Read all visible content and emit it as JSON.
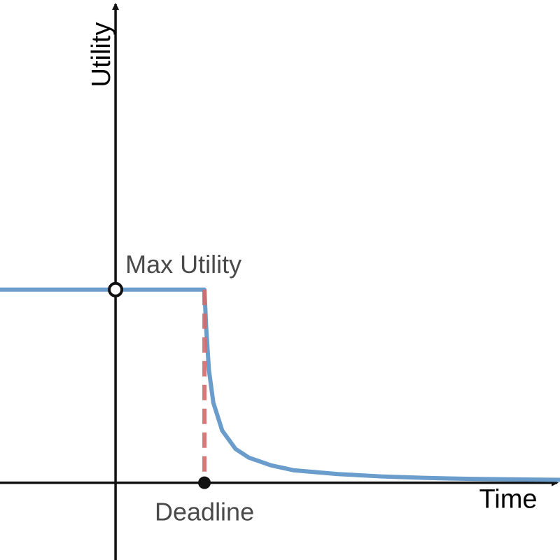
{
  "chart_data": {
    "type": "line",
    "xlabel": "Time",
    "ylabel": "Utility",
    "xlim": [
      -1.3,
      5
    ],
    "ylim": [
      -0.8,
      5
    ],
    "grid": false,
    "legend": "none",
    "deadline": 1,
    "max_utility": 2,
    "series": [
      {
        "x": [
          -1.3,
          0,
          1,
          1.02,
          1.05,
          1.1,
          1.2,
          1.35,
          1.5,
          1.75,
          2,
          2.5,
          3,
          3.5,
          4,
          4.5,
          5
        ],
        "y": [
          2,
          2,
          2,
          1.6,
          1.17,
          0.83,
          0.54,
          0.35,
          0.26,
          0.18,
          0.13,
          0.09,
          0.065,
          0.05,
          0.04,
          0.035,
          0.03
        ]
      }
    ],
    "annotations": [
      {
        "text": "Max Utility",
        "x": 0,
        "y": 2,
        "marker": "open-circle"
      },
      {
        "text": "Deadline",
        "x": 1,
        "y": 0,
        "marker": "filled-circle"
      }
    ]
  },
  "colors": {
    "curve": "#6a9dcb",
    "deadline_line": "#d46a6a",
    "axis": "#111111",
    "annotation_text": "#4a4a4a"
  }
}
